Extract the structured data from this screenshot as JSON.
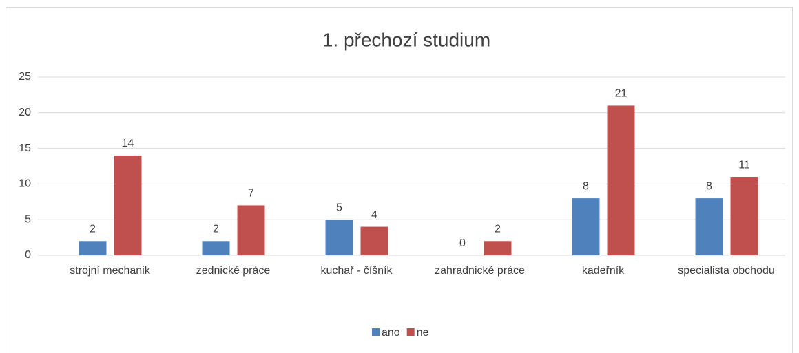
{
  "chart_data": {
    "type": "bar",
    "title": "1. přechozí studium",
    "categories": [
      "strojní mechanik",
      "zednické práce",
      "kuchař - číšník",
      "zahradnické práce",
      "kadeřník",
      "specialista obchodu"
    ],
    "series": [
      {
        "name": "ano",
        "color": "#4f81bd",
        "values": [
          2,
          2,
          5,
          0,
          8,
          8
        ]
      },
      {
        "name": "ne",
        "color": "#c0504d",
        "values": [
          14,
          7,
          4,
          2,
          21,
          11
        ]
      }
    ],
    "ylim": [
      0,
      25
    ],
    "yticks": [
      0,
      5,
      10,
      15,
      20,
      25
    ],
    "grid": true,
    "legend": "bottom"
  }
}
